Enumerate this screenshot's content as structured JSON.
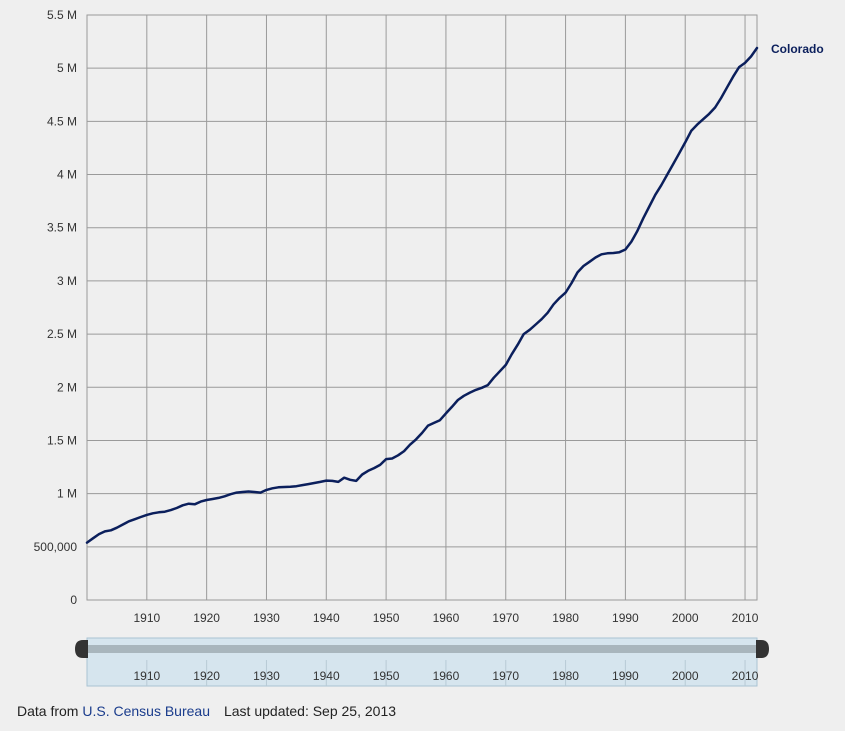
{
  "chart_data": {
    "type": "line",
    "title": "",
    "xlabel": "",
    "ylabel": "",
    "xlim": [
      1900,
      2012
    ],
    "ylim": [
      0,
      5500000
    ],
    "grid": true,
    "y_ticks": [
      {
        "value": 0,
        "label": "0"
      },
      {
        "value": 500000,
        "label": "500,000"
      },
      {
        "value": 1000000,
        "label": "1 M"
      },
      {
        "value": 1500000,
        "label": "1.5 M"
      },
      {
        "value": 2000000,
        "label": "2 M"
      },
      {
        "value": 2500000,
        "label": "2.5 M"
      },
      {
        "value": 3000000,
        "label": "3 M"
      },
      {
        "value": 3500000,
        "label": "3.5 M"
      },
      {
        "value": 4000000,
        "label": "4 M"
      },
      {
        "value": 4500000,
        "label": "4.5 M"
      },
      {
        "value": 5000000,
        "label": "5 M"
      },
      {
        "value": 5500000,
        "label": "5.5 M"
      }
    ],
    "x_ticks": [
      {
        "value": 1910,
        "label": "1910"
      },
      {
        "value": 1920,
        "label": "1920"
      },
      {
        "value": 1930,
        "label": "1930"
      },
      {
        "value": 1940,
        "label": "1940"
      },
      {
        "value": 1950,
        "label": "1950"
      },
      {
        "value": 1960,
        "label": "1960"
      },
      {
        "value": 1970,
        "label": "1970"
      },
      {
        "value": 1980,
        "label": "1980"
      },
      {
        "value": 1990,
        "label": "1990"
      },
      {
        "value": 2000,
        "label": "2000"
      },
      {
        "value": 2010,
        "label": "2010"
      }
    ],
    "series": [
      {
        "name": "Colorado",
        "color": "#0b1f5c",
        "x": [
          1900,
          1901,
          1902,
          1903,
          1904,
          1905,
          1906,
          1907,
          1908,
          1909,
          1910,
          1911,
          1912,
          1913,
          1914,
          1915,
          1916,
          1917,
          1918,
          1919,
          1920,
          1921,
          1922,
          1923,
          1924,
          1925,
          1926,
          1927,
          1928,
          1929,
          1930,
          1931,
          1932,
          1933,
          1934,
          1935,
          1936,
          1937,
          1938,
          1939,
          1940,
          1941,
          1942,
          1943,
          1944,
          1945,
          1946,
          1947,
          1948,
          1949,
          1950,
          1951,
          1952,
          1953,
          1954,
          1955,
          1956,
          1957,
          1958,
          1959,
          1960,
          1961,
          1962,
          1963,
          1964,
          1965,
          1966,
          1967,
          1968,
          1969,
          1970,
          1971,
          1972,
          1973,
          1974,
          1975,
          1976,
          1977,
          1978,
          1979,
          1980,
          1981,
          1982,
          1983,
          1984,
          1985,
          1986,
          1987,
          1988,
          1989,
          1990,
          1991,
          1992,
          1993,
          1994,
          1995,
          1996,
          1997,
          1998,
          1999,
          2000,
          2001,
          2002,
          2003,
          2004,
          2005,
          2006,
          2007,
          2008,
          2009,
          2010,
          2011,
          2012
        ],
        "values": [
          540000,
          580000,
          620000,
          645000,
          655000,
          680000,
          710000,
          740000,
          760000,
          780000,
          800000,
          815000,
          825000,
          830000,
          845000,
          865000,
          890000,
          905000,
          900000,
          925000,
          940000,
          950000,
          960000,
          975000,
          995000,
          1010000,
          1015000,
          1020000,
          1015000,
          1010000,
          1035000,
          1050000,
          1060000,
          1062000,
          1065000,
          1070000,
          1080000,
          1090000,
          1100000,
          1110000,
          1123000,
          1120000,
          1110000,
          1150000,
          1130000,
          1120000,
          1180000,
          1215000,
          1240000,
          1270000,
          1325000,
          1330000,
          1360000,
          1400000,
          1460000,
          1510000,
          1570000,
          1640000,
          1665000,
          1690000,
          1754000,
          1815000,
          1880000,
          1920000,
          1950000,
          1975000,
          1995000,
          2020000,
          2090000,
          2150000,
          2210000,
          2310000,
          2400000,
          2500000,
          2540000,
          2590000,
          2640000,
          2700000,
          2780000,
          2840000,
          2890000,
          2980000,
          3080000,
          3140000,
          3180000,
          3220000,
          3250000,
          3260000,
          3262000,
          3270000,
          3295000,
          3370000,
          3470000,
          3590000,
          3700000,
          3810000,
          3900000,
          4000000,
          4100000,
          4200000,
          4302000,
          4410000,
          4470000,
          4520000,
          4570000,
          4630000,
          4720000,
          4820000,
          4920000,
          5010000,
          5050000,
          5110000,
          5190000
        ]
      }
    ],
    "range_selector": {
      "start": 1900,
      "end": 2012
    }
  },
  "footer": {
    "prefix": "Data from ",
    "source_link": "U.S. Census Bureau",
    "updated": "Last updated: Sep 25, 2013"
  },
  "colors": {
    "line": "#0b1f5c",
    "grid": "#9a9a9a",
    "navigator_fill": "#d6e5ee",
    "navigator_border": "#a9c3d3",
    "handle": "#333333"
  }
}
